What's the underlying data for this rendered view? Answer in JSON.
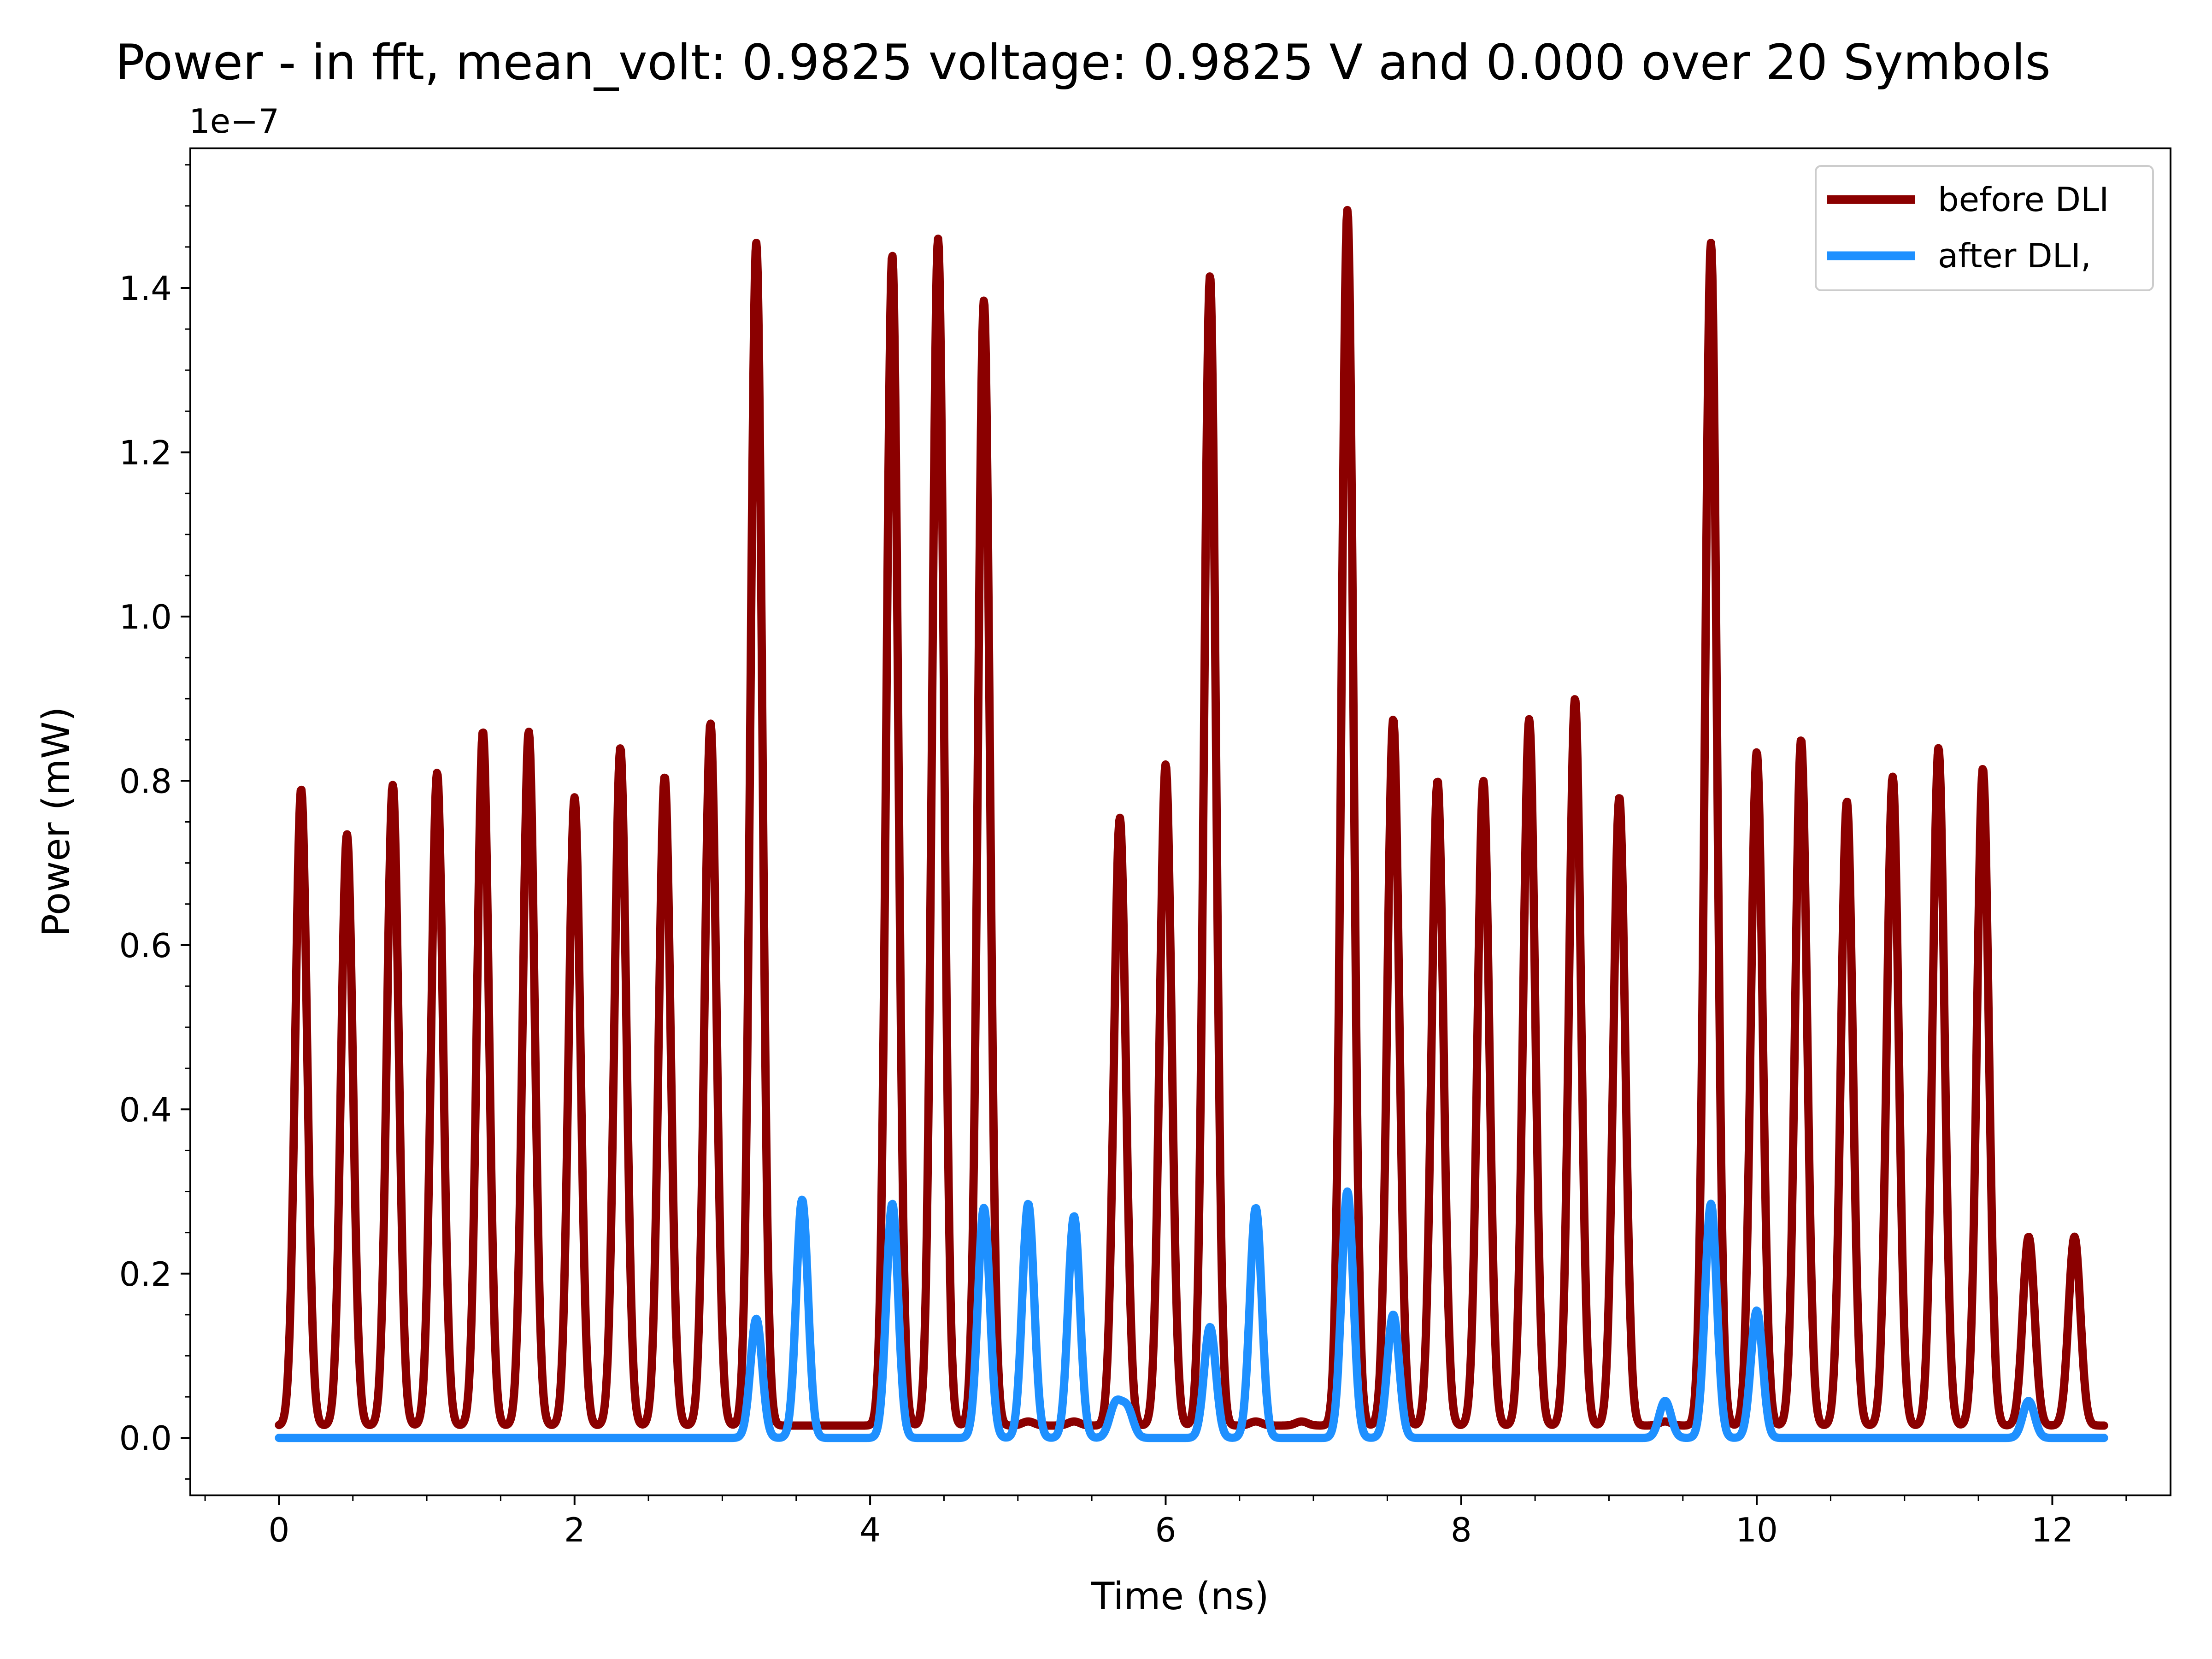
{
  "chart_data": {
    "type": "line",
    "title": "Power - in fft, mean_volt: 0.9825 voltage: 0.9825 V and 0.000 over 20 Symbols",
    "xlabel": "Time (ns)",
    "ylabel": "Power (mW)",
    "y_offset_label": "1e−7",
    "y_scale": 1e-07,
    "xlim": [
      -0.6,
      12.8
    ],
    "ylim": [
      -0.07,
      1.57
    ],
    "x_ticks": [
      0,
      2,
      4,
      6,
      8,
      10,
      12
    ],
    "x_tick_labels": [
      "0",
      "2",
      "4",
      "6",
      "8",
      "10",
      "12"
    ],
    "y_ticks": [
      0.0,
      0.2,
      0.4,
      0.6,
      0.8,
      1.0,
      1.2,
      1.4
    ],
    "y_tick_labels": [
      "0.0",
      "0.2",
      "0.4",
      "0.6",
      "0.8",
      "1.0",
      "1.2",
      "1.4"
    ],
    "grid": false,
    "legend_position": "top-right",
    "pulse_width_ns": 0.04,
    "x_range": [
      0,
      12.35
    ],
    "series": [
      {
        "name": "before DLI",
        "color": "#8b0000",
        "baseline": 0.015,
        "peaks_x": [
          0.15,
          0.46,
          0.77,
          1.07,
          1.38,
          1.69,
          2.0,
          2.31,
          2.61,
          2.92,
          3.23,
          4.15,
          4.46,
          4.77,
          5.07,
          5.38,
          5.69,
          6.0,
          6.3,
          6.61,
          6.92,
          7.23,
          7.54,
          7.84,
          8.15,
          8.46,
          8.77,
          9.07,
          9.38,
          9.69,
          10.0,
          10.3,
          10.61,
          10.92,
          11.23,
          11.53,
          11.84,
          12.15
        ],
        "peaks_y": [
          0.79,
          0.735,
          0.795,
          0.81,
          0.86,
          0.86,
          0.78,
          0.84,
          0.805,
          0.87,
          1.455,
          1.44,
          1.46,
          1.385,
          0.02,
          0.02,
          0.755,
          0.82,
          1.415,
          0.02,
          0.02,
          1.495,
          0.875,
          0.8,
          0.8,
          0.875,
          0.9,
          0.78,
          0.02,
          1.455,
          0.835,
          0.85,
          0.775,
          0.805,
          0.84,
          0.815,
          0.245,
          0.245
        ]
      },
      {
        "name": "after DLI,",
        "color": "#1e90ff",
        "baseline": 0.0,
        "peaks_x": [
          3.23,
          3.54,
          4.15,
          4.77,
          5.07,
          5.38,
          5.66,
          5.74,
          6.3,
          6.61,
          7.23,
          7.54,
          9.38,
          9.69,
          10.0,
          11.84
        ],
        "peaks_y": [
          0.145,
          0.29,
          0.285,
          0.28,
          0.285,
          0.27,
          0.04,
          0.035,
          0.135,
          0.28,
          0.3,
          0.15,
          0.045,
          0.285,
          0.155,
          0.045
        ]
      }
    ]
  }
}
